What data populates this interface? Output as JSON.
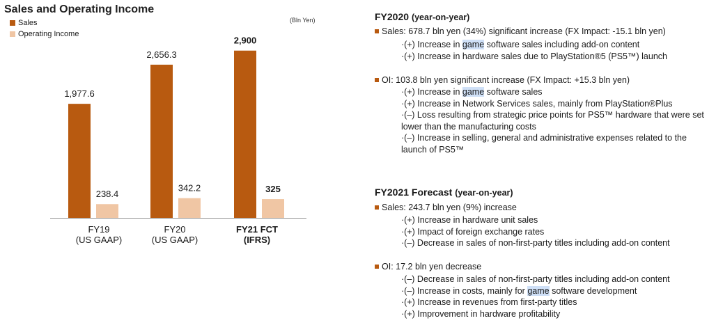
{
  "chart_data": {
    "type": "bar",
    "title": "Sales and Operating Income",
    "unit_note": "(Bln Yen)",
    "categories": [
      {
        "line1": "FY19",
        "line2": "(US GAAP)",
        "bold": false
      },
      {
        "line1": "FY20",
        "line2": "(US GAAP)",
        "bold": false
      },
      {
        "line1": "FY21 FCT",
        "line2": "(IFRS)",
        "bold": true
      }
    ],
    "series": [
      {
        "name": "Sales",
        "color": "#b85a10",
        "values": [
          1977.6,
          2656.3,
          2900
        ],
        "labels": [
          "1,977.6",
          "2,656.3",
          "2,900"
        ]
      },
      {
        "name": "Operating Income",
        "color": "#f0c6a4",
        "values": [
          238.4,
          342.2,
          325
        ],
        "labels": [
          "238.4",
          "342.2",
          "325"
        ]
      }
    ],
    "ylim": [
      0,
      3500
    ],
    "grid": false,
    "legend": "top-left"
  },
  "text": {
    "fy2020": {
      "heading": "FY2020",
      "heading_sub": "(year-on-year)",
      "sales_bullet": "Sales: 678.7 bln yen (34%) significant increase (FX Impact: -15.1 bln yen)",
      "sales_items": [
        [
          "·(+) Increase in ",
          "game",
          " software sales including add-on content"
        ],
        [
          "·(+) Increase in hardware sales due to PlayStation®5 (PS5™) launch"
        ]
      ],
      "oi_bullet": "OI: 103.8 bln yen significant increase (FX Impact: +15.3 bln yen)",
      "oi_items": [
        [
          "·(+) Increase in ",
          "game",
          " software sales"
        ],
        [
          "·(+) Increase in Network Services sales, mainly from PlayStation®Plus"
        ],
        [
          "·(–) Loss resulting from strategic price points for PS5™ hardware that were set"
        ],
        [
          " lower than the manufacturing costs"
        ],
        [
          "·(–) Increase in selling, general and administrative expenses related to the"
        ],
        [
          " launch of PS5™"
        ]
      ]
    },
    "fy2021": {
      "heading": "FY2021 Forecast",
      "heading_sub": "(year-on-year)",
      "sales_bullet": "Sales: 243.7 bln yen (9%) increase",
      "sales_items": [
        [
          "·(+) Increase in hardware unit sales"
        ],
        [
          "·(+) Impact of foreign exchange rates"
        ],
        [
          "·(–) Decrease in sales of non-first-party titles including add-on content"
        ]
      ],
      "oi_bullet": "OI: 17.2 bln yen decrease",
      "oi_items": [
        [
          "·(–) Decrease in sales of non-first-party titles including add-on content"
        ],
        [
          "·(–) Increase in costs, mainly for ",
          "game",
          " software development"
        ],
        [
          "·(+) Increase in revenues from first-party titles"
        ],
        [
          "·(+) Improvement in hardware profitability"
        ]
      ]
    }
  }
}
